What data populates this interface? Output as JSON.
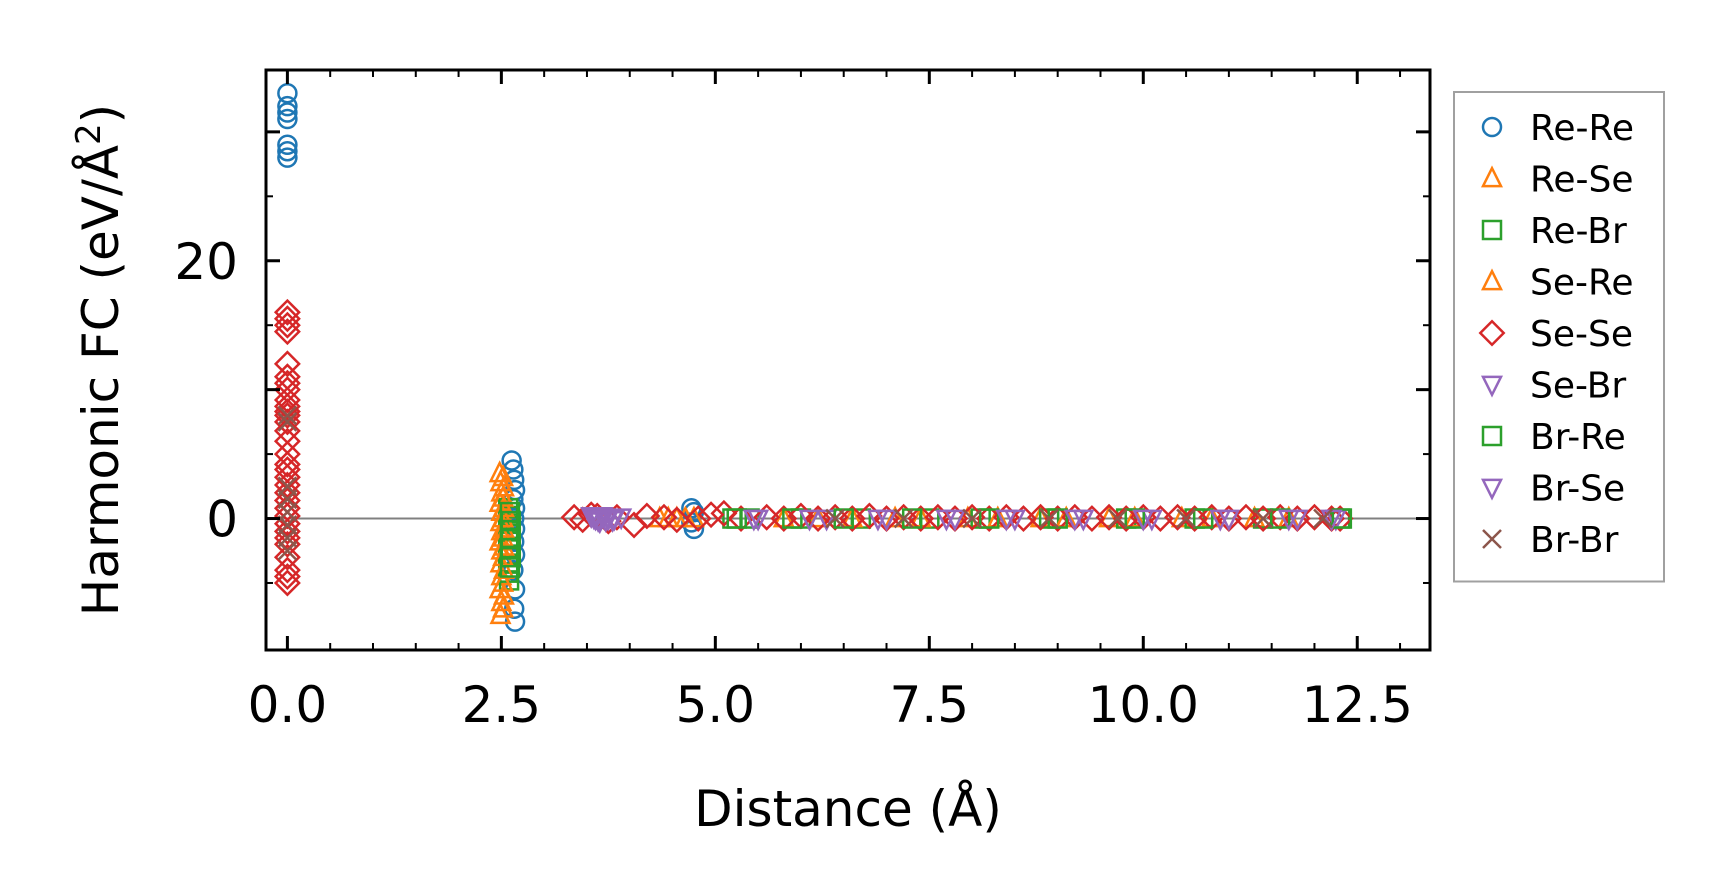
{
  "chart_data": {
    "type": "scatter",
    "title": "",
    "xlabel": "Distance (Å)",
    "ylabel": "Harmonic FC (eV/Å²)",
    "ylabel_base": "Harmonic FC (eV/Å",
    "ylabel_sup": "2",
    "ylabel_close": ")",
    "xlim": [
      -0.25,
      13.35
    ],
    "ylim": [
      -10.2,
      34.8
    ],
    "xticks": [
      0.0,
      2.5,
      5.0,
      7.5,
      10.0,
      12.5
    ],
    "xtick_labels": [
      "0.0",
      "2.5",
      "5.0",
      "7.5",
      "10.0",
      "12.5"
    ],
    "yticks": [
      0,
      20
    ],
    "ytick_labels": [
      "0",
      "20"
    ],
    "zero_line": true,
    "grid": false,
    "legend_position": "outside-right",
    "series": [
      {
        "name": "Re-Re",
        "marker": "circle",
        "color": "#1f77b4",
        "points": [
          [
            0.0,
            33.0
          ],
          [
            0.0,
            32.0
          ],
          [
            0.0,
            31.5
          ],
          [
            0.0,
            31.0
          ],
          [
            0.0,
            29.0
          ],
          [
            0.0,
            28.5
          ],
          [
            0.0,
            28.0
          ],
          [
            2.62,
            4.5
          ],
          [
            2.64,
            3.8
          ],
          [
            2.65,
            3.0
          ],
          [
            2.66,
            2.2
          ],
          [
            2.64,
            1.5
          ],
          [
            2.66,
            0.8
          ],
          [
            2.65,
            0.0
          ],
          [
            2.66,
            -0.8
          ],
          [
            2.65,
            -1.8
          ],
          [
            2.66,
            -2.8
          ],
          [
            2.64,
            -4.0
          ],
          [
            2.66,
            -5.5
          ],
          [
            2.65,
            -7.0
          ],
          [
            2.66,
            -8.0
          ],
          [
            4.72,
            0.8
          ],
          [
            4.75,
            0.5
          ],
          [
            4.72,
            -0.3
          ],
          [
            4.75,
            -0.8
          ]
        ]
      },
      {
        "name": "Re-Se",
        "marker": "triangle-up",
        "color": "#ff7f0e",
        "points": [
          [
            2.48,
            3.5
          ],
          [
            2.49,
            2.8
          ],
          [
            2.5,
            2.0
          ],
          [
            2.48,
            1.2
          ],
          [
            2.5,
            0.5
          ],
          [
            2.49,
            -0.3
          ],
          [
            2.5,
            -1.0
          ],
          [
            2.48,
            -1.8
          ],
          [
            2.5,
            -2.5
          ],
          [
            2.49,
            -3.5
          ],
          [
            2.5,
            -4.5
          ],
          [
            2.48,
            -5.5
          ],
          [
            2.5,
            -6.5
          ],
          [
            2.49,
            -7.5
          ],
          [
            4.35,
            0.0
          ],
          [
            4.55,
            0.0
          ],
          [
            4.75,
            0.0
          ],
          [
            6.2,
            0.0
          ],
          [
            7.1,
            0.0
          ],
          [
            7.95,
            0.0
          ],
          [
            8.8,
            0.0
          ],
          [
            9.6,
            0.0
          ],
          [
            10.45,
            0.0
          ],
          [
            11.3,
            0.0
          ]
        ]
      },
      {
        "name": "Re-Br",
        "marker": "square",
        "color": "#2ca02c",
        "points": [
          [
            2.58,
            0.8
          ],
          [
            2.59,
            0.2
          ],
          [
            2.58,
            -0.4
          ],
          [
            2.59,
            -1.0
          ],
          [
            2.58,
            -1.6
          ],
          [
            2.59,
            -2.2
          ],
          [
            2.58,
            -2.8
          ],
          [
            2.59,
            -3.5
          ],
          [
            2.58,
            -4.2
          ],
          [
            2.59,
            -4.8
          ],
          [
            5.2,
            0.0
          ],
          [
            5.4,
            0.0
          ],
          [
            6.0,
            0.0
          ],
          [
            6.7,
            0.0
          ],
          [
            7.5,
            0.0
          ],
          [
            8.1,
            0.0
          ],
          [
            8.9,
            0.0
          ],
          [
            9.8,
            0.0
          ],
          [
            10.6,
            0.0
          ],
          [
            11.4,
            0.0
          ],
          [
            12.3,
            0.0
          ]
        ]
      },
      {
        "name": "Se-Re",
        "marker": "triangle-up",
        "color": "#ff7f0e",
        "points": [
          [
            2.52,
            3.2
          ],
          [
            2.53,
            2.4
          ],
          [
            2.52,
            1.6
          ],
          [
            2.53,
            0.8
          ],
          [
            2.52,
            0.0
          ],
          [
            2.53,
            -0.8
          ],
          [
            2.52,
            -1.5
          ],
          [
            2.53,
            -2.2
          ],
          [
            2.52,
            -3.0
          ],
          [
            2.53,
            -4.0
          ],
          [
            2.52,
            -5.0
          ],
          [
            2.53,
            -6.0
          ],
          [
            2.52,
            -7.0
          ],
          [
            4.45,
            0.0
          ],
          [
            4.65,
            0.0
          ],
          [
            5.8,
            0.0
          ],
          [
            6.6,
            0.0
          ],
          [
            7.4,
            0.0
          ],
          [
            8.3,
            0.0
          ],
          [
            9.1,
            0.0
          ],
          [
            9.9,
            0.0
          ],
          [
            10.8,
            0.0
          ],
          [
            11.7,
            0.0
          ]
        ]
      },
      {
        "name": "Se-Se",
        "marker": "diamond",
        "color": "#d62728",
        "points": [
          [
            0.0,
            16.0
          ],
          [
            0.0,
            15.5
          ],
          [
            0.0,
            15.0
          ],
          [
            0.0,
            14.5
          ],
          [
            0.0,
            12.0
          ],
          [
            0.0,
            11.0
          ],
          [
            0.0,
            10.5
          ],
          [
            0.0,
            10.0
          ],
          [
            0.0,
            9.2
          ],
          [
            0.0,
            8.7
          ],
          [
            0.0,
            8.3
          ],
          [
            0.0,
            8.0
          ],
          [
            0.0,
            7.5
          ],
          [
            0.0,
            6.8
          ],
          [
            0.0,
            6.0
          ],
          [
            0.0,
            5.0
          ],
          [
            0.0,
            4.2
          ],
          [
            0.0,
            3.8
          ],
          [
            0.0,
            3.2
          ],
          [
            0.0,
            2.6
          ],
          [
            0.0,
            2.0
          ],
          [
            0.0,
            1.4
          ],
          [
            0.0,
            0.8
          ],
          [
            0.0,
            0.2
          ],
          [
            0.0,
            -0.4
          ],
          [
            0.0,
            -1.0
          ],
          [
            0.0,
            -1.5
          ],
          [
            0.0,
            -2.0
          ],
          [
            0.0,
            -3.0
          ],
          [
            0.0,
            -4.0
          ],
          [
            0.0,
            -4.5
          ],
          [
            0.0,
            -5.0
          ],
          [
            3.35,
            0.1
          ],
          [
            3.45,
            -0.1
          ],
          [
            3.55,
            0.3
          ],
          [
            3.62,
            0.2
          ],
          [
            3.75,
            -0.2
          ],
          [
            3.85,
            0.1
          ],
          [
            4.05,
            -0.5
          ],
          [
            4.2,
            0.2
          ],
          [
            4.4,
            0.1
          ],
          [
            4.55,
            -0.1
          ],
          [
            4.8,
            0.0
          ],
          [
            4.95,
            0.3
          ],
          [
            5.1,
            0.4
          ],
          [
            5.3,
            0.0
          ],
          [
            5.6,
            0.1
          ],
          [
            5.8,
            0.0
          ],
          [
            6.0,
            0.2
          ],
          [
            6.2,
            0.0
          ],
          [
            6.4,
            0.1
          ],
          [
            6.6,
            0.0
          ],
          [
            6.8,
            0.2
          ],
          [
            7.0,
            0.0
          ],
          [
            7.2,
            0.1
          ],
          [
            7.4,
            0.0
          ],
          [
            7.6,
            0.1
          ],
          [
            7.8,
            0.0
          ],
          [
            8.0,
            0.1
          ],
          [
            8.2,
            0.0
          ],
          [
            8.4,
            0.1
          ],
          [
            8.6,
            0.0
          ],
          [
            8.8,
            0.1
          ],
          [
            9.0,
            0.0
          ],
          [
            9.2,
            0.1
          ],
          [
            9.4,
            0.0
          ],
          [
            9.6,
            0.1
          ],
          [
            9.8,
            0.0
          ],
          [
            10.0,
            0.1
          ],
          [
            10.2,
            0.0
          ],
          [
            10.4,
            0.1
          ],
          [
            10.6,
            0.0
          ],
          [
            10.8,
            0.1
          ],
          [
            11.0,
            0.0
          ],
          [
            11.2,
            0.1
          ],
          [
            11.4,
            0.0
          ],
          [
            11.6,
            0.1
          ],
          [
            11.8,
            0.0
          ],
          [
            12.0,
            0.1
          ],
          [
            12.2,
            0.0
          ],
          [
            12.3,
            0.0
          ]
        ]
      },
      {
        "name": "Se-Br",
        "marker": "triangle-down",
        "color": "#9467bd",
        "points": [
          [
            3.55,
            0.2
          ],
          [
            3.6,
            0.0
          ],
          [
            3.65,
            -0.2
          ],
          [
            3.7,
            0.1
          ],
          [
            3.75,
            0.0
          ],
          [
            3.8,
            -0.1
          ],
          [
            3.9,
            0.1
          ],
          [
            5.5,
            0.0
          ],
          [
            6.3,
            0.0
          ],
          [
            7.0,
            0.0
          ],
          [
            7.8,
            0.0
          ],
          [
            8.5,
            0.0
          ],
          [
            9.3,
            0.0
          ],
          [
            10.1,
            0.0
          ],
          [
            11.0,
            0.0
          ],
          [
            11.8,
            0.0
          ],
          [
            12.25,
            0.0
          ]
        ]
      },
      {
        "name": "Br-Re",
        "marker": "square",
        "color": "#2ca02c",
        "points": [
          [
            2.6,
            0.5
          ],
          [
            2.61,
            -0.2
          ],
          [
            2.6,
            -0.9
          ],
          [
            2.61,
            -1.5
          ],
          [
            2.6,
            -2.3
          ],
          [
            2.61,
            -3.0
          ],
          [
            2.6,
            -3.8
          ],
          [
            5.25,
            0.0
          ],
          [
            5.9,
            0.0
          ],
          [
            6.5,
            0.0
          ],
          [
            7.3,
            0.0
          ],
          [
            8.2,
            0.0
          ],
          [
            9.0,
            0.0
          ],
          [
            9.9,
            0.0
          ],
          [
            10.7,
            0.0
          ],
          [
            11.6,
            0.0
          ],
          [
            12.32,
            0.0
          ]
        ]
      },
      {
        "name": "Br-Se",
        "marker": "triangle-down",
        "color": "#9467bd",
        "points": [
          [
            3.58,
            0.1
          ],
          [
            3.63,
            -0.1
          ],
          [
            3.68,
            0.2
          ],
          [
            3.72,
            -0.1
          ],
          [
            3.82,
            0.0
          ],
          [
            5.45,
            0.0
          ],
          [
            6.1,
            0.0
          ],
          [
            6.9,
            0.0
          ],
          [
            7.7,
            0.0
          ],
          [
            8.4,
            0.0
          ],
          [
            9.2,
            0.0
          ],
          [
            10.0,
            0.0
          ],
          [
            10.9,
            0.0
          ],
          [
            11.7,
            0.0
          ],
          [
            12.2,
            0.0
          ]
        ]
      },
      {
        "name": "Br-Br",
        "marker": "x",
        "color": "#8c564b",
        "points": [
          [
            0.0,
            8.0
          ],
          [
            0.0,
            7.5
          ],
          [
            0.0,
            2.5
          ],
          [
            0.0,
            1.5
          ],
          [
            0.0,
            0.5
          ],
          [
            0.0,
            -0.5
          ],
          [
            0.0,
            -1.5
          ],
          [
            0.0,
            -2.5
          ],
          [
            6.4,
            0.0
          ],
          [
            7.2,
            0.0
          ],
          [
            8.0,
            0.0
          ],
          [
            8.9,
            0.0
          ],
          [
            9.7,
            0.0
          ],
          [
            10.5,
            0.0
          ],
          [
            11.4,
            0.0
          ],
          [
            12.1,
            0.0
          ]
        ]
      }
    ]
  }
}
